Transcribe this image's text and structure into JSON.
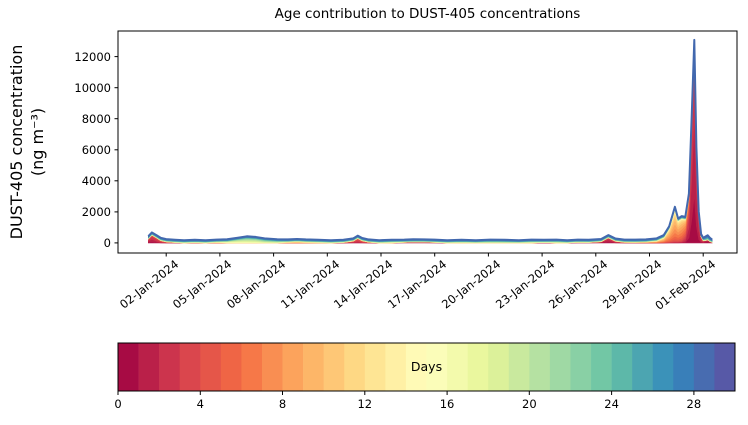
{
  "chart_data": {
    "type": "stacked_area",
    "title": "Age contribution to DUST-405 concentrations",
    "ylabel_line1": "DUST-405 concentration",
    "ylabel_line2": "(ng m⁻³)",
    "y_ticks": [
      0,
      2000,
      4000,
      6000,
      8000,
      10000,
      12000
    ],
    "ylim": [
      -650,
      13650
    ],
    "x_tick_labels": [
      "02-Jan-2024",
      "05-Jan-2024",
      "08-Jan-2024",
      "11-Jan-2024",
      "14-Jan-2024",
      "17-Jan-2024",
      "20-Jan-2024",
      "23-Jan-2024",
      "26-Jan-2024",
      "29-Jan-2024",
      "01-Feb-2024"
    ],
    "x_tick_days": [
      1,
      4,
      7,
      10,
      13,
      16,
      19,
      22,
      25,
      28,
      31
    ],
    "x_start_day": 0,
    "x_end_day": 31.5,
    "age_bins": 30,
    "colormap_anchors": [
      "#9e0142",
      "#d53e4f",
      "#f46d43",
      "#fdae61",
      "#fee08b",
      "#ffffbf",
      "#e6f598",
      "#abdda4",
      "#66c2a5",
      "#3288bd",
      "#5e4fa2"
    ],
    "total_line_color": "#4268ae",
    "spine_color": "#000000",
    "baseline_components": [
      [
        21,
        5,
        105
      ],
      [
        27.5,
        1.8,
        70
      ]
    ],
    "points": [
      [
        0.0,
        [
          [
            1.5,
            1.2,
            260
          ]
        ]
      ],
      [
        0.2,
        [
          [
            1.5,
            1.2,
            500
          ]
        ]
      ],
      [
        0.45,
        [
          [
            2,
            1.2,
            330
          ]
        ]
      ],
      [
        0.7,
        [
          [
            2.5,
            1.2,
            150
          ]
        ]
      ],
      [
        1.0,
        [
          [
            3,
            1.2,
            70
          ]
        ]
      ],
      [
        1.5,
        [
          [
            3.5,
            1.5,
            30
          ]
        ]
      ],
      [
        2.0,
        []
      ],
      [
        2.6,
        [
          [
            6,
            2,
            25
          ]
        ]
      ],
      [
        3.2,
        []
      ],
      [
        3.8,
        [
          [
            7,
            2,
            40
          ]
        ]
      ],
      [
        4.4,
        [
          [
            16,
            2.5,
            60
          ]
        ]
      ],
      [
        5.0,
        [
          [
            18,
            2.5,
            160
          ]
        ]
      ],
      [
        5.5,
        [
          [
            19,
            2.5,
            250
          ]
        ]
      ],
      [
        6.0,
        [
          [
            19,
            2.5,
            210
          ]
        ]
      ],
      [
        6.5,
        [
          [
            20,
            2.5,
            120
          ]
        ]
      ],
      [
        7.2,
        [
          [
            20,
            2.5,
            60
          ]
        ]
      ],
      [
        7.8,
        [
          [
            9,
            2,
            50
          ]
        ]
      ],
      [
        8.3,
        [
          [
            9,
            2,
            80
          ]
        ]
      ],
      [
        8.8,
        [
          [
            10,
            2,
            50
          ]
        ]
      ],
      [
        9.5,
        [
          [
            11,
            2,
            30
          ]
        ]
      ],
      [
        10.2,
        []
      ],
      [
        10.9,
        [
          [
            4,
            1.5,
            30
          ]
        ]
      ],
      [
        11.45,
        [
          [
            2.5,
            1.2,
            120
          ]
        ]
      ],
      [
        11.7,
        [
          [
            2.5,
            1.2,
            290
          ]
        ]
      ],
      [
        11.95,
        [
          [
            3,
            1.2,
            140
          ]
        ]
      ],
      [
        12.3,
        [
          [
            3.5,
            1.5,
            50
          ]
        ]
      ],
      [
        12.9,
        []
      ],
      [
        13.6,
        [
          [
            15,
            3,
            30
          ]
        ]
      ],
      [
        14.3,
        [
          [
            1,
            0.8,
            40
          ]
        ]
      ],
      [
        14.8,
        [
          [
            0.8,
            0.8,
            60
          ]
        ]
      ],
      [
        15.4,
        [
          [
            1,
            0.8,
            55
          ]
        ]
      ],
      [
        16.0,
        [
          [
            1.5,
            0.8,
            35
          ]
        ]
      ],
      [
        16.7,
        []
      ],
      [
        17.5,
        [
          [
            16,
            3,
            25
          ]
        ]
      ],
      [
        18.3,
        []
      ],
      [
        19.1,
        [
          [
            20,
            3,
            40
          ]
        ]
      ],
      [
        19.9,
        [
          [
            22,
            3,
            30
          ]
        ]
      ],
      [
        20.7,
        []
      ],
      [
        21.4,
        [
          [
            18,
            3,
            35
          ]
        ]
      ],
      [
        22.1,
        [
          [
            3,
            1.5,
            30
          ]
        ]
      ],
      [
        22.8,
        [
          [
            19,
            3,
            40
          ]
        ]
      ],
      [
        23.4,
        []
      ],
      [
        24.0,
        [
          [
            2,
            1.2,
            40
          ]
        ]
      ],
      [
        24.6,
        [
          [
            2,
            1.2,
            30
          ]
        ]
      ],
      [
        25.3,
        [
          [
            1.5,
            1,
            80
          ]
        ]
      ],
      [
        25.7,
        [
          [
            1.2,
            1,
            330
          ]
        ]
      ],
      [
        26.1,
        [
          [
            2,
            1,
            110
          ]
        ]
      ],
      [
        26.6,
        [
          [
            3,
            1.5,
            40
          ]
        ]
      ],
      [
        27.2,
        [
          [
            4,
            2,
            35
          ]
        ]
      ],
      [
        27.8,
        [
          [
            6,
            2.5,
            50
          ]
        ]
      ],
      [
        28.4,
        [
          [
            8,
            3,
            120
          ]
        ]
      ],
      [
        28.8,
        [
          [
            8,
            3,
            330
          ]
        ]
      ],
      [
        29.1,
        [
          [
            8,
            3,
            900
          ]
        ]
      ],
      [
        29.42,
        [
          [
            8,
            3,
            2150
          ]
        ]
      ],
      [
        29.6,
        [
          [
            7.5,
            3,
            1400
          ]
        ]
      ],
      [
        29.8,
        [
          [
            7,
            3,
            1550
          ]
        ]
      ],
      [
        30.0,
        [
          [
            6,
            2.8,
            1250
          ],
          [
            2,
            1,
            250
          ]
        ]
      ],
      [
        30.2,
        [
          [
            5,
            2.5,
            1100
          ],
          [
            1.5,
            1.2,
            1900
          ]
        ]
      ],
      [
        30.35,
        [
          [
            4,
            2.2,
            1300
          ],
          [
            1.2,
            1.1,
            6500
          ]
        ]
      ],
      [
        30.5,
        [
          [
            3.5,
            2,
            1200
          ],
          [
            1,
            1,
            11700
          ]
        ]
      ],
      [
        30.62,
        [
          [
            3,
            1.8,
            800
          ],
          [
            1.2,
            1,
            5200
          ]
        ]
      ],
      [
        30.75,
        [
          [
            2.5,
            1.5,
            350
          ],
          [
            1.5,
            1,
            1500
          ]
        ]
      ],
      [
        30.88,
        [
          [
            2,
            1.2,
            400
          ]
        ]
      ],
      [
        31.0,
        [
          [
            2,
            1.2,
            150
          ]
        ]
      ],
      [
        31.12,
        [
          [
            0.6,
            0.7,
            150
          ],
          [
            26,
            2.5,
            80
          ]
        ]
      ],
      [
        31.25,
        [
          [
            0.6,
            0.7,
            200
          ],
          [
            26,
            2.5,
            120
          ]
        ]
      ],
      [
        31.38,
        [
          [
            1,
            0.8,
            90
          ],
          [
            26,
            2.5,
            60
          ]
        ]
      ],
      [
        31.5,
        [
          [
            1.5,
            1,
            40
          ]
        ]
      ]
    ],
    "colorbar": {
      "label": "Days",
      "min": 0,
      "max": 30,
      "segments": 30,
      "ticks": [
        0,
        4,
        8,
        12,
        16,
        20,
        24,
        28
      ]
    }
  }
}
